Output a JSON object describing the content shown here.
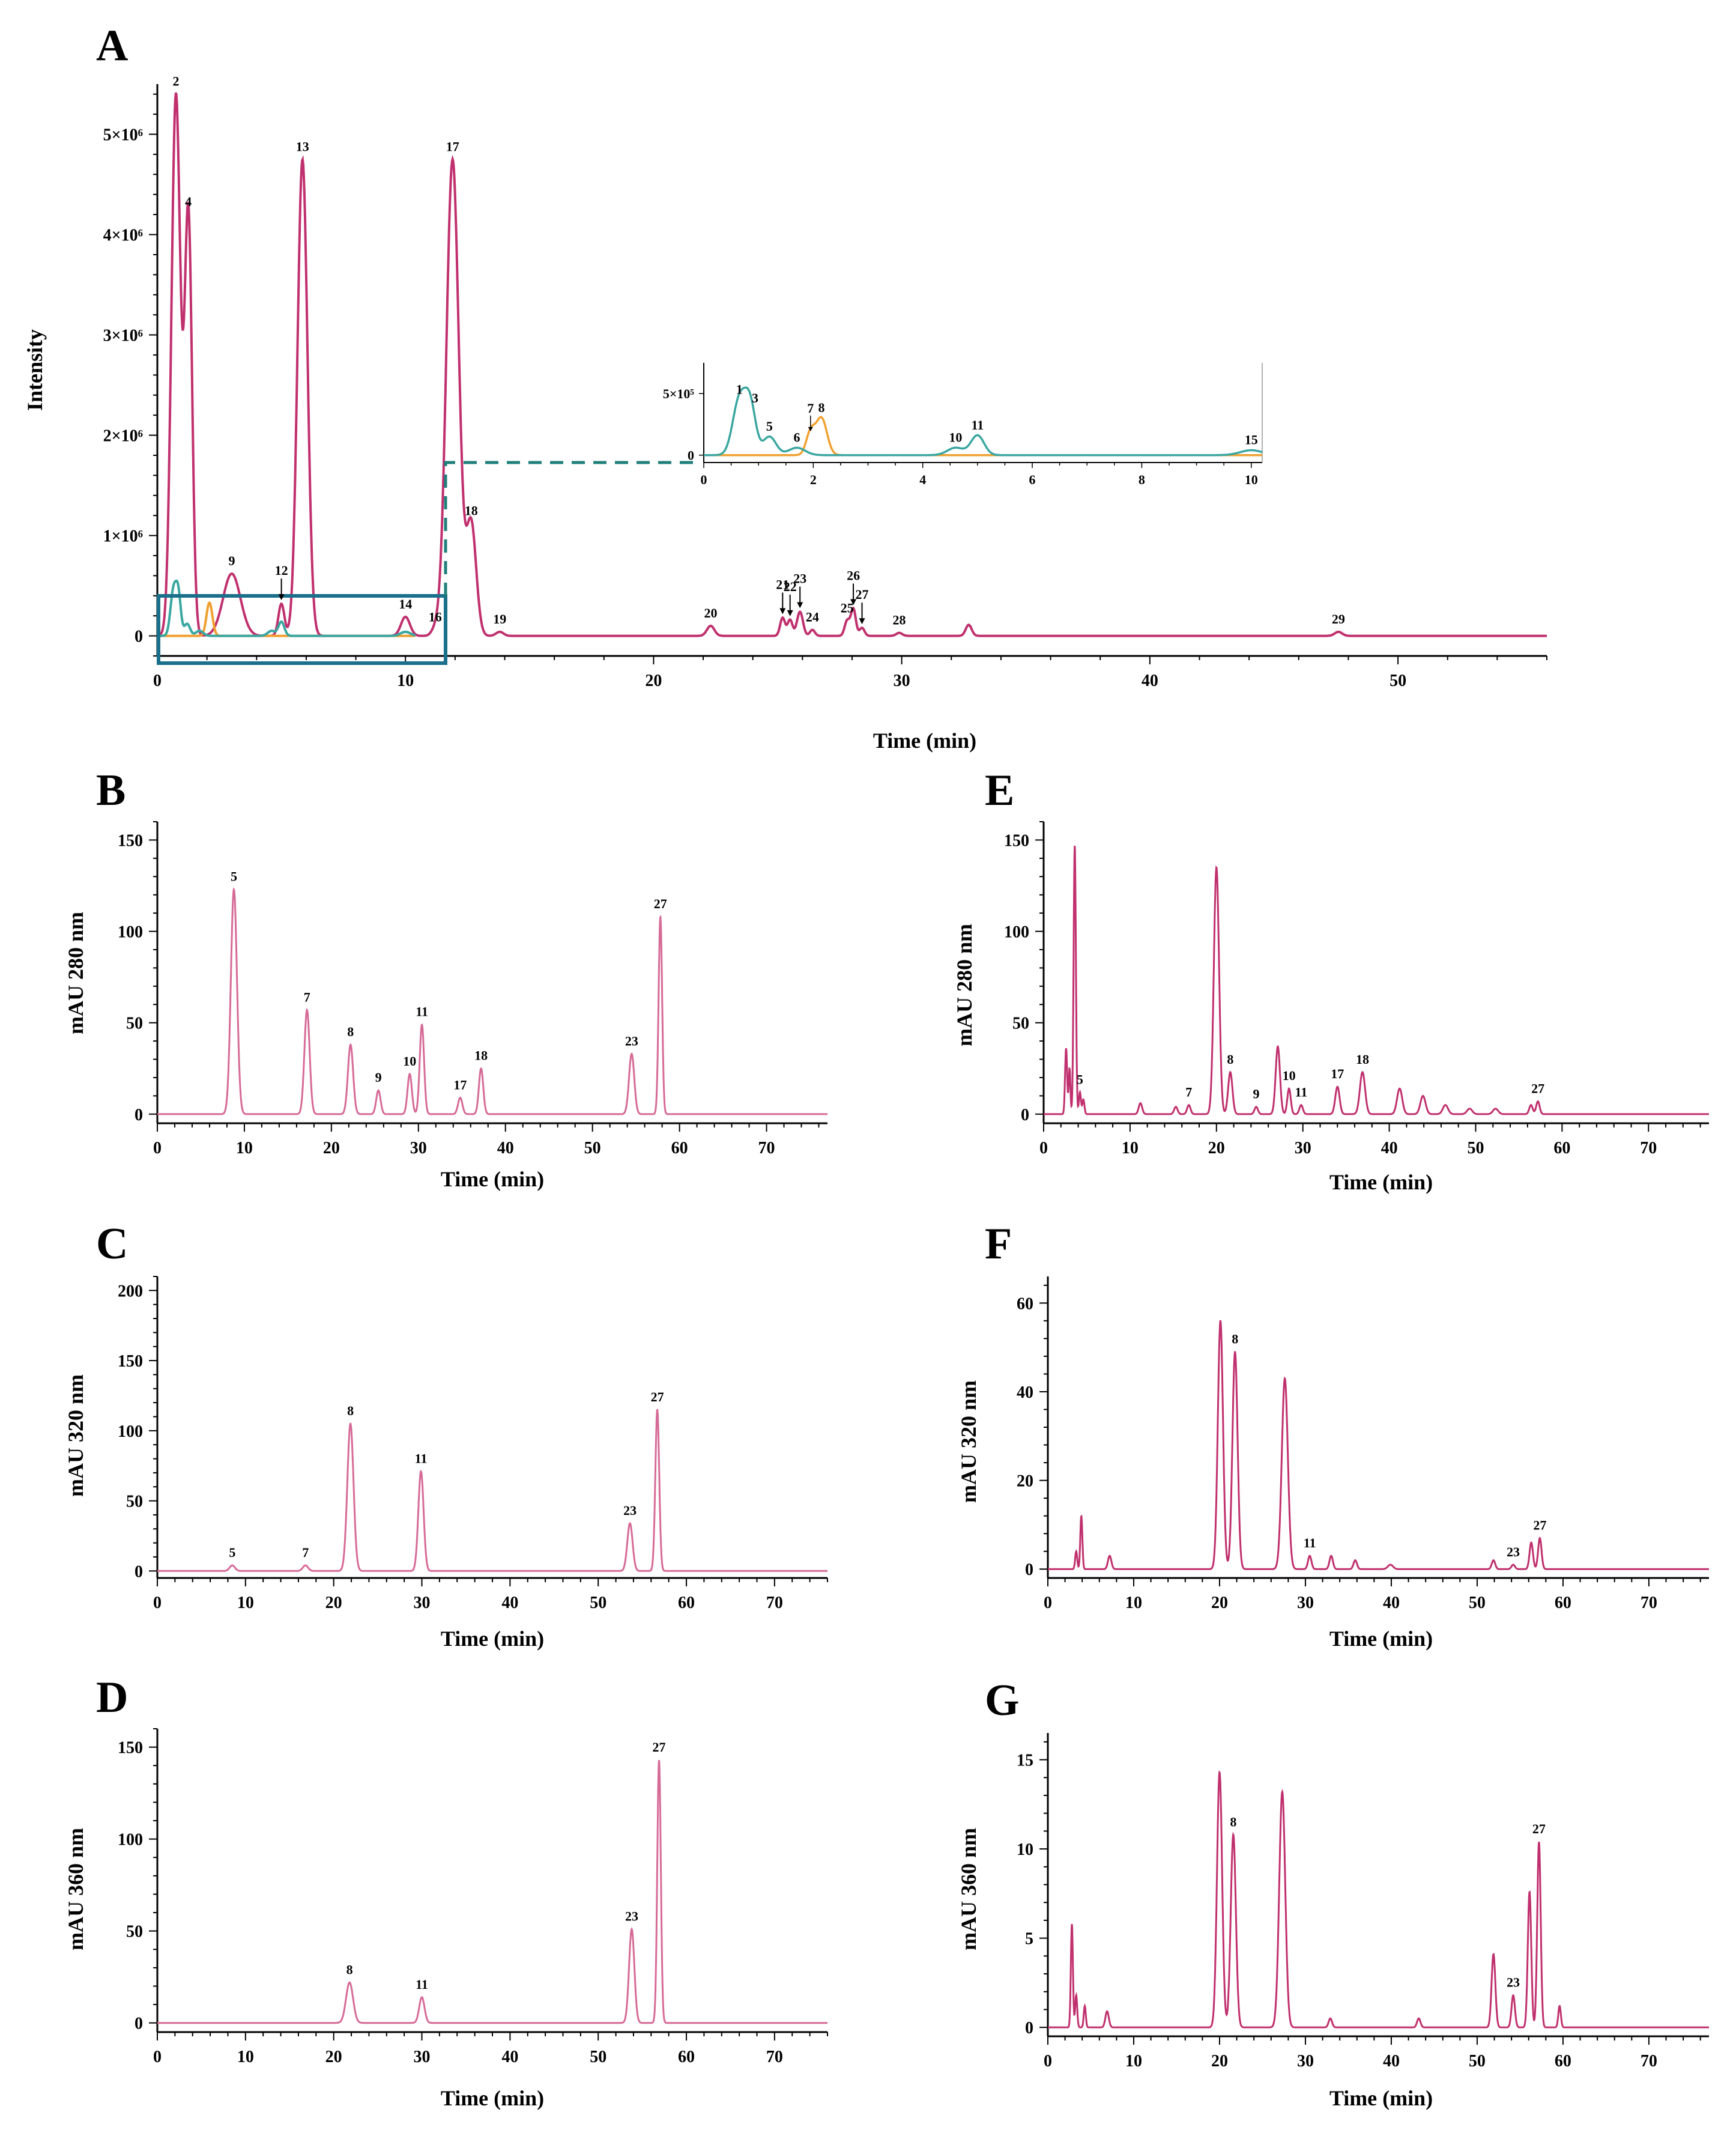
{
  "figure": {
    "background": "#ffffff",
    "trace_color": "#c0306e",
    "trace_light": "#d66a97",
    "teal_color": "#3aa6a0",
    "orange_color": "#f0a030",
    "box_color": "#1a6f8a"
  },
  "chart_data": [
    {
      "id": "A",
      "panel_label": "A",
      "type": "line",
      "xlabel": "Time (min)",
      "ylabel": "Intensity",
      "xlim": [
        0,
        56
      ],
      "ylim": [
        -200000,
        5500000
      ],
      "x_ticks": [
        0,
        10,
        20,
        30,
        40,
        50
      ],
      "x_tick_labels": [
        "0",
        "10",
        "20",
        "30",
        "40",
        "50"
      ],
      "y_ticks": [
        0,
        1000000,
        2000000,
        3000000,
        4000000,
        5000000
      ],
      "y_tick_labels": [
        "0",
        "1×10⁶",
        "2×10⁶",
        "3×10⁶",
        "4×10⁶",
        "5×10⁶"
      ],
      "peaks": [
        {
          "label": "2",
          "x": 0.75,
          "y": 5400000,
          "w": 0.18
        },
        {
          "label": "4",
          "x": 1.25,
          "y": 4200000,
          "w": 0.15
        },
        {
          "label": "9",
          "x": 3.0,
          "y": 620000,
          "w": 0.35
        },
        {
          "label": "12",
          "x": 5.0,
          "y": 320000,
          "w": 0.12,
          "arrow": true
        },
        {
          "label": "13",
          "x": 5.85,
          "y": 4750000,
          "w": 0.2
        },
        {
          "label": "14",
          "x": 10.0,
          "y": 190000,
          "w": 0.18
        },
        {
          "label": "16",
          "x": 11.2,
          "y": 60000,
          "w": 0.15
        },
        {
          "label": "17",
          "x": 11.9,
          "y": 4750000,
          "w": 0.25
        },
        {
          "label": "18",
          "x": 12.65,
          "y": 1120000,
          "w": 0.2
        },
        {
          "label": "19",
          "x": 13.8,
          "y": 40000,
          "w": 0.15
        },
        {
          "label": "20",
          "x": 22.3,
          "y": 100000,
          "w": 0.15
        },
        {
          "label": "21",
          "x": 25.2,
          "y": 180000,
          "w": 0.1,
          "arrow": true
        },
        {
          "label": "22",
          "x": 25.5,
          "y": 160000,
          "w": 0.1,
          "arrow": true
        },
        {
          "label": "23",
          "x": 25.9,
          "y": 240000,
          "w": 0.12,
          "arrow": true
        },
        {
          "label": "24",
          "x": 26.4,
          "y": 60000,
          "w": 0.1
        },
        {
          "label": "25",
          "x": 27.8,
          "y": 150000,
          "w": 0.1
        },
        {
          "label": "26",
          "x": 28.05,
          "y": 270000,
          "w": 0.1,
          "arrow": true
        },
        {
          "label": "27",
          "x": 28.4,
          "y": 80000,
          "w": 0.1,
          "arrow": true
        },
        {
          "label": "28",
          "x": 29.9,
          "y": 30000,
          "w": 0.12
        },
        {
          "label": "",
          "x": 32.7,
          "y": 110000,
          "w": 0.12
        },
        {
          "label": "29",
          "x": 47.6,
          "y": 40000,
          "w": 0.15
        }
      ],
      "overlay_teal_peaks": [
        {
          "x": 0.65,
          "y": 450000,
          "w": 0.12
        },
        {
          "x": 0.85,
          "y": 380000,
          "w": 0.1
        },
        {
          "x": 1.2,
          "y": 120000,
          "w": 0.12
        },
        {
          "x": 1.7,
          "y": 50000,
          "w": 0.15
        },
        {
          "x": 4.6,
          "y": 50000,
          "w": 0.15
        },
        {
          "x": 5.0,
          "y": 140000,
          "w": 0.12
        },
        {
          "x": 10.0,
          "y": 40000,
          "w": 0.2
        }
      ],
      "overlay_orange_peaks": [
        {
          "x": 2.1,
          "y": 330000,
          "w": 0.12
        }
      ],
      "inset": {
        "xlim": [
          0,
          10.2
        ],
        "ylim": [
          -60000,
          750000
        ],
        "x_ticks": [
          0,
          2,
          4,
          6,
          8,
          10
        ],
        "x_tick_labels": [
          "0",
          "2",
          "4",
          "6",
          "8",
          "10"
        ],
        "y_ticks": [
          0,
          500000
        ],
        "y_tick_labels": [
          "0",
          "5×10⁵"
        ],
        "teal_peaks": [
          {
            "label": "1",
            "x": 0.65,
            "y": 450000,
            "w": 0.12
          },
          {
            "label": "3",
            "x": 0.85,
            "y": 380000,
            "w": 0.1
          },
          {
            "label": "5",
            "x": 1.2,
            "y": 150000,
            "w": 0.12
          },
          {
            "label": "6",
            "x": 1.7,
            "y": 60000,
            "w": 0.15
          },
          {
            "label": "10",
            "x": 4.6,
            "y": 60000,
            "w": 0.15
          },
          {
            "label": "11",
            "x": 5.0,
            "y": 160000,
            "w": 0.12
          },
          {
            "label": "15",
            "x": 10.0,
            "y": 40000,
            "w": 0.2
          }
        ],
        "orange_peaks": [
          {
            "label": "7",
            "x": 1.95,
            "y": 180000,
            "w": 0.08,
            "arrow": true
          },
          {
            "label": "8",
            "x": 2.15,
            "y": 300000,
            "w": 0.1
          }
        ]
      }
    },
    {
      "id": "B",
      "panel_label": "B",
      "type": "line",
      "xlabel": "Time (min)",
      "ylabel": "mAU  280 nm",
      "xlim": [
        0,
        77
      ],
      "ylim": [
        -5,
        160
      ],
      "x_ticks": [
        0,
        10,
        20,
        30,
        40,
        50,
        60,
        70
      ],
      "x_tick_labels": [
        "0",
        "10",
        "20",
        "30",
        "40",
        "50",
        "60",
        "70"
      ],
      "y_ticks": [
        0,
        50,
        100,
        150
      ],
      "y_tick_labels": [
        "0",
        "50",
        "100",
        "150"
      ],
      "peaks": [
        {
          "label": "5",
          "x": 8.8,
          "y": 123,
          "w": 0.35
        },
        {
          "label": "7",
          "x": 17.2,
          "y": 57,
          "w": 0.3
        },
        {
          "label": "8",
          "x": 22.2,
          "y": 38,
          "w": 0.3
        },
        {
          "label": "9",
          "x": 25.4,
          "y": 13,
          "w": 0.25
        },
        {
          "label": "10",
          "x": 29.0,
          "y": 22,
          "w": 0.25
        },
        {
          "label": "11",
          "x": 30.4,
          "y": 49,
          "w": 0.25
        },
        {
          "label": "17",
          "x": 34.8,
          "y": 9,
          "w": 0.25
        },
        {
          "label": "18",
          "x": 37.2,
          "y": 25,
          "w": 0.25
        },
        {
          "label": "23",
          "x": 54.5,
          "y": 33,
          "w": 0.3
        },
        {
          "label": "27",
          "x": 57.8,
          "y": 108,
          "w": 0.2
        }
      ]
    },
    {
      "id": "C",
      "panel_label": "C",
      "type": "line",
      "xlabel": "Time (min)",
      "ylabel": "mAU  320 nm",
      "xlim": [
        0,
        76
      ],
      "ylim": [
        -5,
        210
      ],
      "x_ticks": [
        0,
        10,
        20,
        30,
        40,
        50,
        60,
        70
      ],
      "x_tick_labels": [
        "0",
        "10",
        "20",
        "30",
        "40",
        "50",
        "60",
        "70"
      ],
      "y_ticks": [
        0,
        50,
        100,
        150,
        200
      ],
      "y_tick_labels": [
        "0",
        "50",
        "100",
        "150",
        "200"
      ],
      "peaks": [
        {
          "label": "5",
          "x": 8.5,
          "y": 4,
          "w": 0.3
        },
        {
          "label": "7",
          "x": 16.8,
          "y": 4,
          "w": 0.3
        },
        {
          "label": "8",
          "x": 21.9,
          "y": 105,
          "w": 0.35
        },
        {
          "label": "11",
          "x": 29.9,
          "y": 71,
          "w": 0.3
        },
        {
          "label": "23",
          "x": 53.6,
          "y": 34,
          "w": 0.3
        },
        {
          "label": "27",
          "x": 56.7,
          "y": 115,
          "w": 0.22
        }
      ]
    },
    {
      "id": "D",
      "panel_label": "D",
      "type": "line",
      "xlabel": "Time (min)",
      "ylabel": "mAU  360 nm",
      "xlim": [
        0,
        76
      ],
      "ylim": [
        -5,
        160
      ],
      "x_ticks": [
        0,
        10,
        20,
        30,
        40,
        50,
        60,
        70
      ],
      "x_tick_labels": [
        "0",
        "10",
        "20",
        "30",
        "40",
        "50",
        "60",
        "70"
      ],
      "y_ticks": [
        0,
        50,
        100,
        150
      ],
      "y_tick_labels": [
        "0",
        "50",
        "100",
        "150"
      ],
      "peaks": [
        {
          "label": "8",
          "x": 21.8,
          "y": 22,
          "w": 0.4
        },
        {
          "label": "11",
          "x": 30.0,
          "y": 14,
          "w": 0.3
        },
        {
          "label": "23",
          "x": 53.8,
          "y": 51,
          "w": 0.3
        },
        {
          "label": "27",
          "x": 56.9,
          "y": 143,
          "w": 0.2
        }
      ]
    },
    {
      "id": "E",
      "panel_label": "E",
      "type": "line",
      "xlabel": "Time (min)",
      "ylabel": "mAU  280 nm",
      "xlim": [
        0,
        77
      ],
      "ylim": [
        -5,
        160
      ],
      "x_ticks": [
        0,
        10,
        20,
        30,
        40,
        50,
        60,
        70
      ],
      "x_tick_labels": [
        "0",
        "10",
        "20",
        "30",
        "40",
        "50",
        "60",
        "70"
      ],
      "y_ticks": [
        0,
        50,
        100,
        150
      ],
      "y_tick_labels": [
        "0",
        "50",
        "100",
        "150"
      ],
      "peaks": [
        {
          "label": "",
          "x": 2.6,
          "y": 36,
          "w": 0.12
        },
        {
          "label": "",
          "x": 3.0,
          "y": 25,
          "w": 0.1
        },
        {
          "label": "",
          "x": 3.6,
          "y": 147,
          "w": 0.13
        },
        {
          "label": "5",
          "x": 4.2,
          "y": 12,
          "w": 0.12
        },
        {
          "label": "",
          "x": 4.6,
          "y": 8,
          "w": 0.12
        },
        {
          "label": "",
          "x": 11.2,
          "y": 6,
          "w": 0.2
        },
        {
          "label": "",
          "x": 15.3,
          "y": 4,
          "w": 0.2
        },
        {
          "label": "7",
          "x": 16.8,
          "y": 5,
          "w": 0.2
        },
        {
          "label": "",
          "x": 20.0,
          "y": 135,
          "w": 0.3
        },
        {
          "label": "8",
          "x": 21.6,
          "y": 23,
          "w": 0.25
        },
        {
          "label": "9",
          "x": 24.6,
          "y": 4,
          "w": 0.2
        },
        {
          "label": "",
          "x": 27.1,
          "y": 37,
          "w": 0.25
        },
        {
          "label": "10",
          "x": 28.4,
          "y": 14,
          "w": 0.2
        },
        {
          "label": "11",
          "x": 29.8,
          "y": 5,
          "w": 0.2
        },
        {
          "label": "17",
          "x": 34.0,
          "y": 15,
          "w": 0.25
        },
        {
          "label": "18",
          "x": 36.9,
          "y": 23,
          "w": 0.3
        },
        {
          "label": "",
          "x": 41.2,
          "y": 14,
          "w": 0.3
        },
        {
          "label": "",
          "x": 43.9,
          "y": 10,
          "w": 0.3
        },
        {
          "label": "",
          "x": 46.5,
          "y": 5,
          "w": 0.3
        },
        {
          "label": "",
          "x": 49.3,
          "y": 3,
          "w": 0.3
        },
        {
          "label": "",
          "x": 52.3,
          "y": 3,
          "w": 0.3
        },
        {
          "label": "",
          "x": 56.4,
          "y": 5,
          "w": 0.2
        },
        {
          "label": "27",
          "x": 57.2,
          "y": 7,
          "w": 0.2
        }
      ]
    },
    {
      "id": "F",
      "panel_label": "F",
      "type": "line",
      "xlabel": "Time (min)",
      "ylabel": "mAU  320 nm",
      "xlim": [
        0,
        77
      ],
      "ylim": [
        -2,
        66
      ],
      "x_ticks": [
        0,
        10,
        20,
        30,
        40,
        50,
        60,
        70
      ],
      "x_tick_labels": [
        "0",
        "10",
        "20",
        "30",
        "40",
        "50",
        "60",
        "70"
      ],
      "y_ticks": [
        0,
        20,
        40,
        60
      ],
      "y_tick_labels": [
        "0",
        "20",
        "40",
        "60"
      ],
      "peaks": [
        {
          "label": "",
          "x": 3.3,
          "y": 4,
          "w": 0.12
        },
        {
          "label": "",
          "x": 3.9,
          "y": 12,
          "w": 0.12
        },
        {
          "label": "",
          "x": 7.2,
          "y": 3,
          "w": 0.2
        },
        {
          "label": "",
          "x": 20.1,
          "y": 56,
          "w": 0.3
        },
        {
          "label": "8",
          "x": 21.8,
          "y": 49,
          "w": 0.3
        },
        {
          "label": "",
          "x": 27.6,
          "y": 43,
          "w": 0.35
        },
        {
          "label": "11",
          "x": 30.5,
          "y": 3,
          "w": 0.2
        },
        {
          "label": "",
          "x": 33.0,
          "y": 3,
          "w": 0.2
        },
        {
          "label": "",
          "x": 35.8,
          "y": 2,
          "w": 0.2
        },
        {
          "label": "",
          "x": 39.9,
          "y": 1,
          "w": 0.3
        },
        {
          "label": "",
          "x": 51.9,
          "y": 2,
          "w": 0.2
        },
        {
          "label": "23",
          "x": 54.2,
          "y": 1,
          "w": 0.2
        },
        {
          "label": "",
          "x": 56.3,
          "y": 6,
          "w": 0.2
        },
        {
          "label": "27",
          "x": 57.3,
          "y": 7,
          "w": 0.2
        }
      ]
    },
    {
      "id": "G",
      "panel_label": "G",
      "type": "line",
      "xlabel": "Time (min)",
      "ylabel": "mAU  360 nm",
      "xlim": [
        0,
        77
      ],
      "ylim": [
        -0.5,
        16.5
      ],
      "x_ticks": [
        0,
        10,
        20,
        30,
        40,
        50,
        60,
        70
      ],
      "x_tick_labels": [
        "0",
        "10",
        "20",
        "30",
        "40",
        "50",
        "60",
        "70"
      ],
      "y_ticks": [
        0,
        5,
        10,
        15
      ],
      "y_tick_labels": [
        "0",
        "5",
        "10",
        "15"
      ],
      "peaks": [
        {
          "label": "",
          "x": 2.8,
          "y": 5.8,
          "w": 0.12
        },
        {
          "label": "",
          "x": 3.3,
          "y": 1.8,
          "w": 0.12
        },
        {
          "label": "",
          "x": 4.3,
          "y": 1.2,
          "w": 0.12
        },
        {
          "label": "",
          "x": 6.9,
          "y": 0.9,
          "w": 0.2
        },
        {
          "label": "",
          "x": 20.0,
          "y": 14.3,
          "w": 0.3
        },
        {
          "label": "8",
          "x": 21.6,
          "y": 10.8,
          "w": 0.3
        },
        {
          "label": "",
          "x": 27.3,
          "y": 13.2,
          "w": 0.35
        },
        {
          "label": "",
          "x": 32.9,
          "y": 0.5,
          "w": 0.2
        },
        {
          "label": "",
          "x": 43.2,
          "y": 0.5,
          "w": 0.2
        },
        {
          "label": "",
          "x": 51.9,
          "y": 4.1,
          "w": 0.22
        },
        {
          "label": "23",
          "x": 54.2,
          "y": 1.8,
          "w": 0.2
        },
        {
          "label": "",
          "x": 56.1,
          "y": 7.6,
          "w": 0.2
        },
        {
          "label": "27",
          "x": 57.2,
          "y": 10.4,
          "w": 0.2
        },
        {
          "label": "",
          "x": 59.6,
          "y": 1.2,
          "w": 0.15
        }
      ]
    }
  ]
}
